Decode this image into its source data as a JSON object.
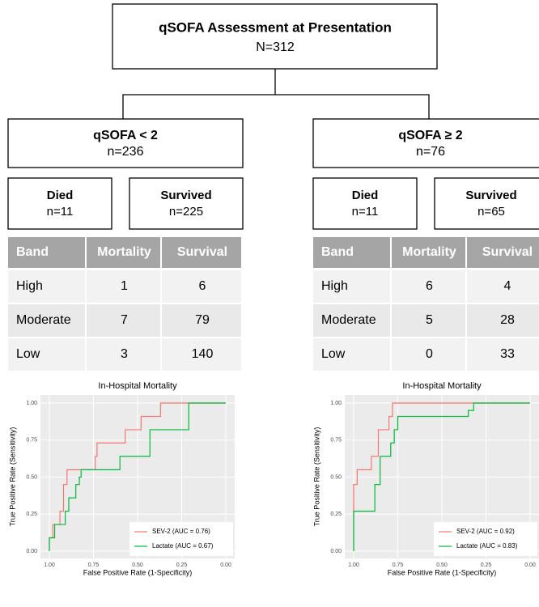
{
  "root": {
    "title": "qSOFA Assessment at Presentation",
    "n": "N=312"
  },
  "groups": [
    {
      "title": "qSOFA < 2",
      "n": "n=236",
      "died": {
        "label": "Died",
        "n": "n=11"
      },
      "survived": {
        "label": "Survived",
        "n": "n=225"
      },
      "table": {
        "header": [
          "Band",
          "Mortality",
          "Survival"
        ],
        "rows": [
          [
            "High",
            1,
            6
          ],
          [
            "Moderate",
            7,
            79
          ],
          [
            "Low",
            3,
            140
          ]
        ]
      }
    },
    {
      "title": "qSOFA ≥ 2",
      "n": "n=76",
      "died": {
        "label": "Died",
        "n": "n=11"
      },
      "survived": {
        "label": "Survived",
        "n": "n=65"
      },
      "table": {
        "header": [
          "Band",
          "Mortality",
          "Survival"
        ],
        "rows": [
          [
            "High",
            6,
            4
          ],
          [
            "Moderate",
            5,
            28
          ],
          [
            "Low",
            0,
            33
          ]
        ]
      }
    }
  ],
  "chart_data": [
    {
      "type": "line",
      "title": "In-Hospital Mortality",
      "xlabel": "False Positive Rate (1-Specificity)",
      "ylabel": "True Positive Rate (Sensitivity)",
      "xlim": [
        1,
        0
      ],
      "ylim": [
        0,
        1
      ],
      "xticks": [
        {
          "value": 1,
          "label": "1.00"
        },
        {
          "value": 0.75,
          "label": "0.75"
        },
        {
          "value": 0.5,
          "label": "0.50"
        },
        {
          "value": 0.25,
          "label": "0.25"
        },
        {
          "value": 0,
          "label": "0.00"
        }
      ],
      "yticks": [
        {
          "value": 0,
          "label": "0.00"
        },
        {
          "value": 0.25,
          "label": "0.25"
        },
        {
          "value": 0.5,
          "label": "0.50"
        },
        {
          "value": 0.75,
          "label": "0.75"
        },
        {
          "value": 1,
          "label": "1.00"
        }
      ],
      "grid": true,
      "legend": "bottom-right",
      "series": [
        {
          "name": "SEV-2 (AUC = 0.76)",
          "color": "#f8766d",
          "x": [
            1,
            1,
            0.98,
            0.98,
            0.94,
            0.94,
            0.92,
            0.92,
            0.9,
            0.9,
            0.74,
            0.74,
            0.73,
            0.73,
            0.57,
            0.57,
            0.48,
            0.48,
            0.37,
            0.37,
            0
          ],
          "values": [
            0,
            0.09,
            0.09,
            0.18,
            0.18,
            0.27,
            0.27,
            0.45,
            0.45,
            0.55,
            0.55,
            0.64,
            0.64,
            0.73,
            0.73,
            0.82,
            0.82,
            0.91,
            0.91,
            1,
            1
          ]
        },
        {
          "name": "Lactate (AUC = 0.67)",
          "color": "#00ba38",
          "x": [
            1,
            1,
            0.97,
            0.97,
            0.91,
            0.91,
            0.89,
            0.89,
            0.85,
            0.85,
            0.83,
            0.83,
            0.82,
            0.82,
            0.6,
            0.6,
            0.43,
            0.43,
            0.21,
            0.21,
            0
          ],
          "values": [
            0,
            0.09,
            0.09,
            0.18,
            0.18,
            0.27,
            0.27,
            0.36,
            0.36,
            0.45,
            0.45,
            0.5,
            0.5,
            0.55,
            0.55,
            0.64,
            0.64,
            0.82,
            0.82,
            1,
            1
          ]
        }
      ]
    },
    {
      "type": "line",
      "title": "In-Hospital Mortality",
      "xlabel": "False Positive Rate (1-Specificity)",
      "ylabel": "True Positive Rate (Sensitivity)",
      "xlim": [
        1,
        0
      ],
      "ylim": [
        0,
        1
      ],
      "xticks": [
        {
          "value": 1,
          "label": "1.00"
        },
        {
          "value": 0.75,
          "label": "0.75"
        },
        {
          "value": 0.5,
          "label": "0.50"
        },
        {
          "value": 0.25,
          "label": "0.25"
        },
        {
          "value": 0,
          "label": "0.00"
        }
      ],
      "yticks": [
        {
          "value": 0,
          "label": "0.00"
        },
        {
          "value": 0.25,
          "label": "0.25"
        },
        {
          "value": 0.5,
          "label": "0.50"
        },
        {
          "value": 0.75,
          "label": "0.75"
        },
        {
          "value": 1,
          "label": "1.00"
        }
      ],
      "grid": true,
      "legend": "bottom-right",
      "series": [
        {
          "name": "SEV-2 (AUC = 0.92)",
          "color": "#f8766d",
          "x": [
            1,
            1,
            0.98,
            0.98,
            0.9,
            0.9,
            0.86,
            0.86,
            0.8,
            0.8,
            0.78,
            0.78,
            0
          ],
          "values": [
            0,
            0.45,
            0.45,
            0.55,
            0.55,
            0.64,
            0.64,
            0.82,
            0.82,
            0.91,
            0.91,
            1,
            1
          ]
        },
        {
          "name": "Lactate (AUC = 0.83)",
          "color": "#00ba38",
          "x": [
            1,
            1,
            0.88,
            0.88,
            0.85,
            0.85,
            0.79,
            0.79,
            0.77,
            0.77,
            0.75,
            0.75,
            0.35,
            0.35,
            0.32,
            0.32,
            0
          ],
          "values": [
            0,
            0.27,
            0.27,
            0.45,
            0.45,
            0.64,
            0.64,
            0.73,
            0.73,
            0.82,
            0.82,
            0.91,
            0.91,
            0.95,
            0.95,
            1,
            1
          ]
        }
      ]
    }
  ]
}
